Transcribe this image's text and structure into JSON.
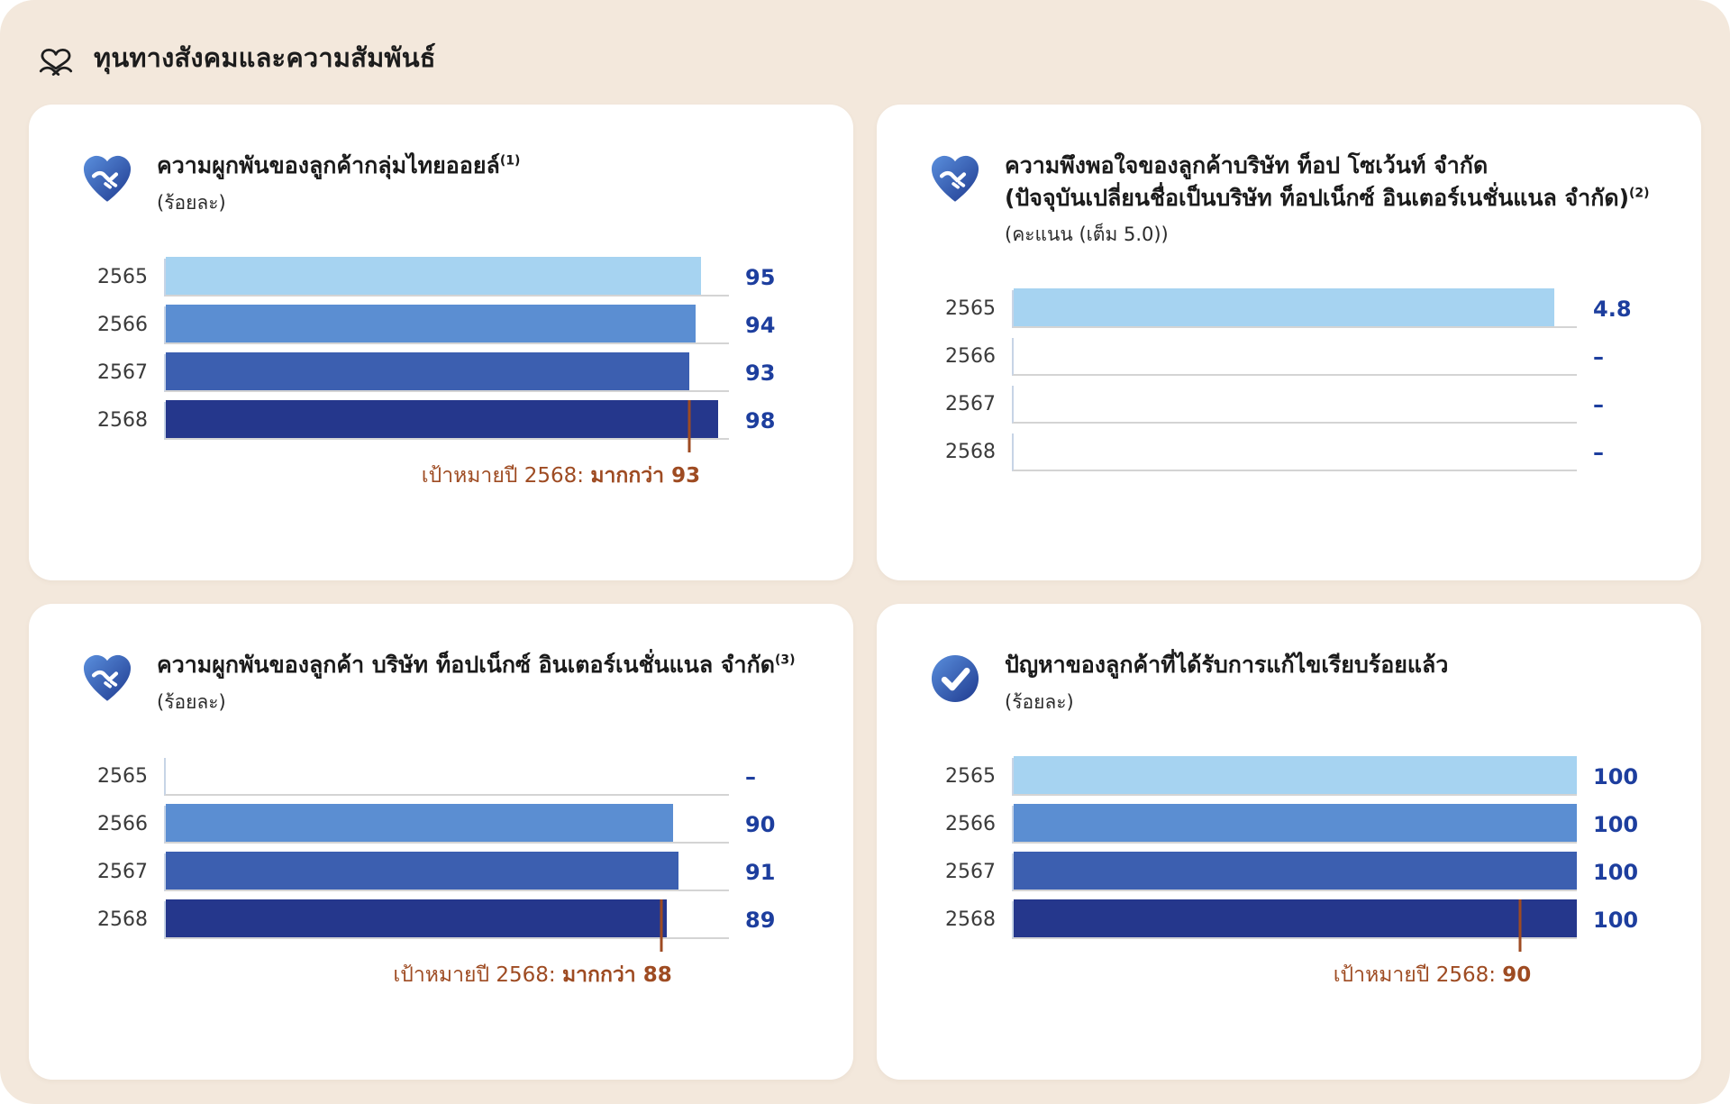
{
  "page": {
    "background": "#f3e8dc"
  },
  "header": {
    "title": "ทุนทางสังคมและความสัมพันธ์",
    "icon": "heart-hands-icon"
  },
  "colors": {
    "bar_series": [
      "#a6d3f1",
      "#5b8ed2",
      "#3c5fb0",
      "#25378c"
    ],
    "value_text": "#1d3e9e",
    "target": "#9e4b22",
    "baseline": "#d4d4d4",
    "icon_blue_light": "#4f83d6",
    "icon_blue_dark": "#1f3a8f"
  },
  "panels": [
    {
      "icon": "heart-handshake-icon",
      "title": "ความผูกพันของลูกค้ากลุ่มไทยออยล์",
      "sup": "(1)",
      "unit": "(ร้อยละ)"
    },
    {
      "icon": "heart-handshake-icon",
      "title": "ความพึงพอใจของลูกค้าบริษัท ท็อป โซเว้นท์ จำกัด",
      "title_line2": "(ปัจจุบันเปลี่ยนชื่อเป็นบริษัท ท็อปเน็กซ์ อินเตอร์เนชั่นแนล จำกัด)",
      "sup": "(2)",
      "unit": "(คะแนน (เต็ม 5.0))"
    },
    {
      "icon": "heart-handshake-icon",
      "title": "ความผูกพันของลูกค้า บริษัท ท็อปเน็กซ์ อินเตอร์เนชั่นแนล จำกัด",
      "sup": "(3)",
      "unit": "(ร้อยละ)"
    },
    {
      "icon": "check-circle-icon",
      "title": "ปัญหาของลูกค้าที่ได้รับการแก้ไขเรียบร้อยแล้ว",
      "sup": "",
      "unit": "(ร้อยละ)"
    }
  ],
  "chart_data": [
    {
      "type": "bar",
      "title": "ความผูกพันของลูกค้ากลุ่มไทยออยล์ (ร้อยละ)",
      "categories": [
        "2565",
        "2566",
        "2567",
        "2568"
      ],
      "values": [
        95,
        94,
        93,
        98
      ],
      "value_labels": [
        "95",
        "94",
        "93",
        "98"
      ],
      "max": 100,
      "ylabel": "ร้อยละ",
      "target": {
        "value": 93,
        "prefix": "เป้าหมายปี 2568: ",
        "bold": "มากกว่า 93"
      }
    },
    {
      "type": "bar",
      "title": "ความพึงพอใจของลูกค้าบริษัท ท็อป โซเว้นท์ จำกัด (คะแนน เต็ม 5.0)",
      "categories": [
        "2565",
        "2566",
        "2567",
        "2568"
      ],
      "values": [
        4.8,
        null,
        null,
        null
      ],
      "value_labels": [
        "4.8",
        "–",
        "–",
        "–"
      ],
      "max": 5.0,
      "ylabel": "คะแนน (เต็ม 5.0)"
    },
    {
      "type": "bar",
      "title": "ความผูกพันของลูกค้า บริษัท ท็อปเน็กซ์ อินเตอร์เนชั่นแนล จำกัด (ร้อยละ)",
      "categories": [
        "2565",
        "2566",
        "2567",
        "2568"
      ],
      "values": [
        null,
        90,
        91,
        89
      ],
      "value_labels": [
        "–",
        "90",
        "91",
        "89"
      ],
      "max": 100,
      "ylabel": "ร้อยละ",
      "target": {
        "value": 88,
        "prefix": "เป้าหมายปี 2568: ",
        "bold": "มากกว่า 88"
      }
    },
    {
      "type": "bar",
      "title": "ปัญหาของลูกค้าที่ได้รับการแก้ไขเรียบร้อยแล้ว (ร้อยละ)",
      "categories": [
        "2565",
        "2566",
        "2567",
        "2568"
      ],
      "values": [
        100,
        100,
        100,
        100
      ],
      "value_labels": [
        "100",
        "100",
        "100",
        "100"
      ],
      "max": 100,
      "ylabel": "ร้อยละ",
      "target": {
        "value": 90,
        "prefix": "เป้าหมายปี 2568: ",
        "bold": "90"
      }
    }
  ]
}
